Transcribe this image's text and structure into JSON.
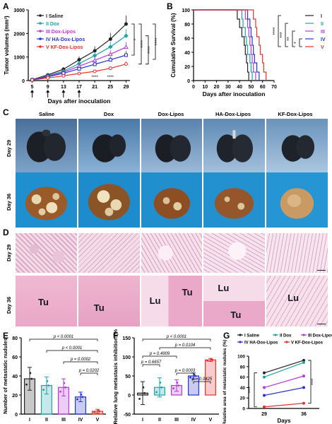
{
  "panels": {
    "A": "A",
    "B": "B",
    "C": "C",
    "D": "D",
    "E": "E",
    "F": "F",
    "G": "G"
  },
  "colors": {
    "I": "#222222",
    "II": "#1fa2a6",
    "III": "#b43ad6",
    "IV": "#2733c9",
    "V": "#e8312b"
  },
  "photo_section": {
    "columns": [
      "Saline",
      "Dox",
      "Dox-Lipos",
      "HA-Dox-Lipos",
      "KF-Dox-Lipos"
    ],
    "gross_rows": [
      "Day 29",
      "Day 36"
    ],
    "histo_rows": [
      "Day 29",
      "Day 36"
    ],
    "histo_labels": [
      "Tu",
      "Tu",
      "Lu",
      "Tu",
      "Lu",
      "Tu",
      "Lu"
    ]
  },
  "chart_data": [
    {
      "panel": "A",
      "type": "line",
      "ylabel": "Tumor volumes (mm³)",
      "xlabel": "Days after inoculation",
      "x": [
        5,
        9,
        13,
        17,
        21,
        25,
        29
      ],
      "xlim": [
        4,
        30
      ],
      "ylim": [
        0,
        3000
      ],
      "yticks": [
        0,
        1000,
        2000,
        3000
      ],
      "legend": [
        "I  Saline",
        "II  Dox",
        "III  Dox-Lipos",
        "IV  HA-Dox-Lipos",
        "V  KF-Dox-Lipos"
      ],
      "series": [
        {
          "name": "I  Saline",
          "values": [
            40,
            240,
            480,
            880,
            1260,
            1760,
            2400
          ]
        },
        {
          "name": "II  Dox",
          "values": [
            35,
            200,
            400,
            720,
            1060,
            1430,
            1900
          ]
        },
        {
          "name": "III  Dox-Lipos",
          "values": [
            30,
            180,
            360,
            610,
            860,
            1120,
            1420
          ]
        },
        {
          "name": "IV  HA-Dox-Lipos",
          "values": [
            30,
            160,
            310,
            500,
            690,
            880,
            1080
          ]
        },
        {
          "name": "V  KF-Dox-Lipos",
          "values": [
            25,
            110,
            200,
            300,
            390,
            520,
            700
          ]
        }
      ],
      "annotations": [
        "****",
        "****",
        "*",
        "****",
        "****",
        "****"
      ],
      "arrow_days": [
        5,
        9,
        13,
        17
      ]
    },
    {
      "panel": "B",
      "type": "line",
      "ylabel": "Cumulative Survival (%)",
      "xlabel": "Days after inoculation",
      "xticks": [
        0,
        10,
        20,
        30,
        40,
        50,
        60,
        70
      ],
      "xlim": [
        0,
        70
      ],
      "yticks": [
        0,
        20,
        40,
        60,
        80,
        100
      ],
      "ylim": [
        0,
        100
      ],
      "legend": [
        "I",
        "II",
        "III",
        "IV",
        "V"
      ],
      "series": [
        {
          "name": "I",
          "steps": [
            [
              0,
              100
            ],
            [
              36,
              100
            ],
            [
              38,
              87
            ],
            [
              40,
              75
            ],
            [
              42,
              62
            ],
            [
              44,
              50
            ],
            [
              45,
              37
            ],
            [
              46,
              25
            ],
            [
              47,
              12
            ],
            [
              48,
              0
            ]
          ]
        },
        {
          "name": "II",
          "steps": [
            [
              0,
              100
            ],
            [
              40,
              100
            ],
            [
              42,
              87
            ],
            [
              43,
              75
            ],
            [
              45,
              62
            ],
            [
              46,
              50
            ],
            [
              47,
              37
            ],
            [
              49,
              25
            ],
            [
              50,
              12
            ],
            [
              51,
              0
            ]
          ]
        },
        {
          "name": "III",
          "steps": [
            [
              0,
              100
            ],
            [
              43,
              100
            ],
            [
              45,
              87
            ],
            [
              47,
              75
            ],
            [
              48,
              62
            ],
            [
              49,
              50
            ],
            [
              50,
              37
            ],
            [
              51,
              25
            ],
            [
              52,
              12
            ],
            [
              54,
              0
            ]
          ]
        },
        {
          "name": "IV",
          "steps": [
            [
              0,
              100
            ],
            [
              45,
              100
            ],
            [
              47,
              87
            ],
            [
              49,
              75
            ],
            [
              50,
              62
            ],
            [
              51,
              50
            ],
            [
              52,
              37
            ],
            [
              53,
              25
            ],
            [
              55,
              12
            ],
            [
              57,
              0
            ]
          ]
        },
        {
          "name": "V",
          "steps": [
            [
              0,
              100
            ],
            [
              50,
              100
            ],
            [
              52,
              87
            ],
            [
              54,
              75
            ],
            [
              55,
              62
            ],
            [
              57,
              50
            ],
            [
              58,
              37
            ],
            [
              60,
              25
            ],
            [
              61,
              12
            ],
            [
              63,
              0
            ]
          ]
        }
      ],
      "significance": [
        "****",
        "***",
        "**",
        "*"
      ]
    },
    {
      "panel": "E",
      "type": "bar",
      "ylabel": "Number of metastatic nudules",
      "categories": [
        "I",
        "II",
        "III",
        "IV",
        "V"
      ],
      "values": [
        37,
        30,
        28,
        18,
        3
      ],
      "errors": [
        12,
        9,
        9,
        5,
        2
      ],
      "ylim": [
        0,
        80
      ],
      "yticks": [
        0,
        20,
        40,
        60,
        80
      ],
      "comparisons": [
        "p < 0.0001",
        "p < 0.0001",
        "p = 0.0002",
        "p = 0.0202"
      ]
    },
    {
      "panel": "F",
      "type": "bar",
      "ylabel": "Relative lung metastasis inhibition (%)",
      "categories": [
        "I",
        "II",
        "III",
        "IV",
        "V"
      ],
      "values": [
        5,
        20,
        25,
        50,
        92
      ],
      "errors": [
        30,
        25,
        15,
        8,
        4
      ],
      "ylim": [
        -50,
        150
      ],
      "yticks": [
        -50,
        0,
        50,
        100,
        150
      ],
      "comparisons": [
        "p < 0.0001",
        "p = 0.0104",
        "p = 0.4909",
        "p = 0.6657",
        "p = 0.0003",
        "p = 0.0425"
      ]
    },
    {
      "panel": "G",
      "type": "line",
      "ylabel": "Relative area of metastatic nudules (%)",
      "xlabel": "Days",
      "categories": [
        "29",
        "36"
      ],
      "ylim": [
        0,
        100
      ],
      "yticks": [
        0,
        20,
        40,
        60,
        80,
        100
      ],
      "legend": [
        "I Saline",
        "II Dox",
        "III Dox-Lipos",
        "IV HA-Dox-Lipos",
        "V KF-Dox-Lipos"
      ],
      "series": [
        {
          "name": "I Saline",
          "values": [
            68,
            92
          ]
        },
        {
          "name": "II Dox",
          "values": [
            60,
            88
          ]
        },
        {
          "name": "III Dox-Lipos",
          "values": [
            40,
            62
          ]
        },
        {
          "name": "IV HA-Dox-Lipos",
          "values": [
            25,
            40
          ]
        },
        {
          "name": "V KF-Dox-Lipos",
          "values": [
            3,
            10
          ]
        }
      ],
      "significance": [
        "****",
        "****"
      ]
    }
  ]
}
